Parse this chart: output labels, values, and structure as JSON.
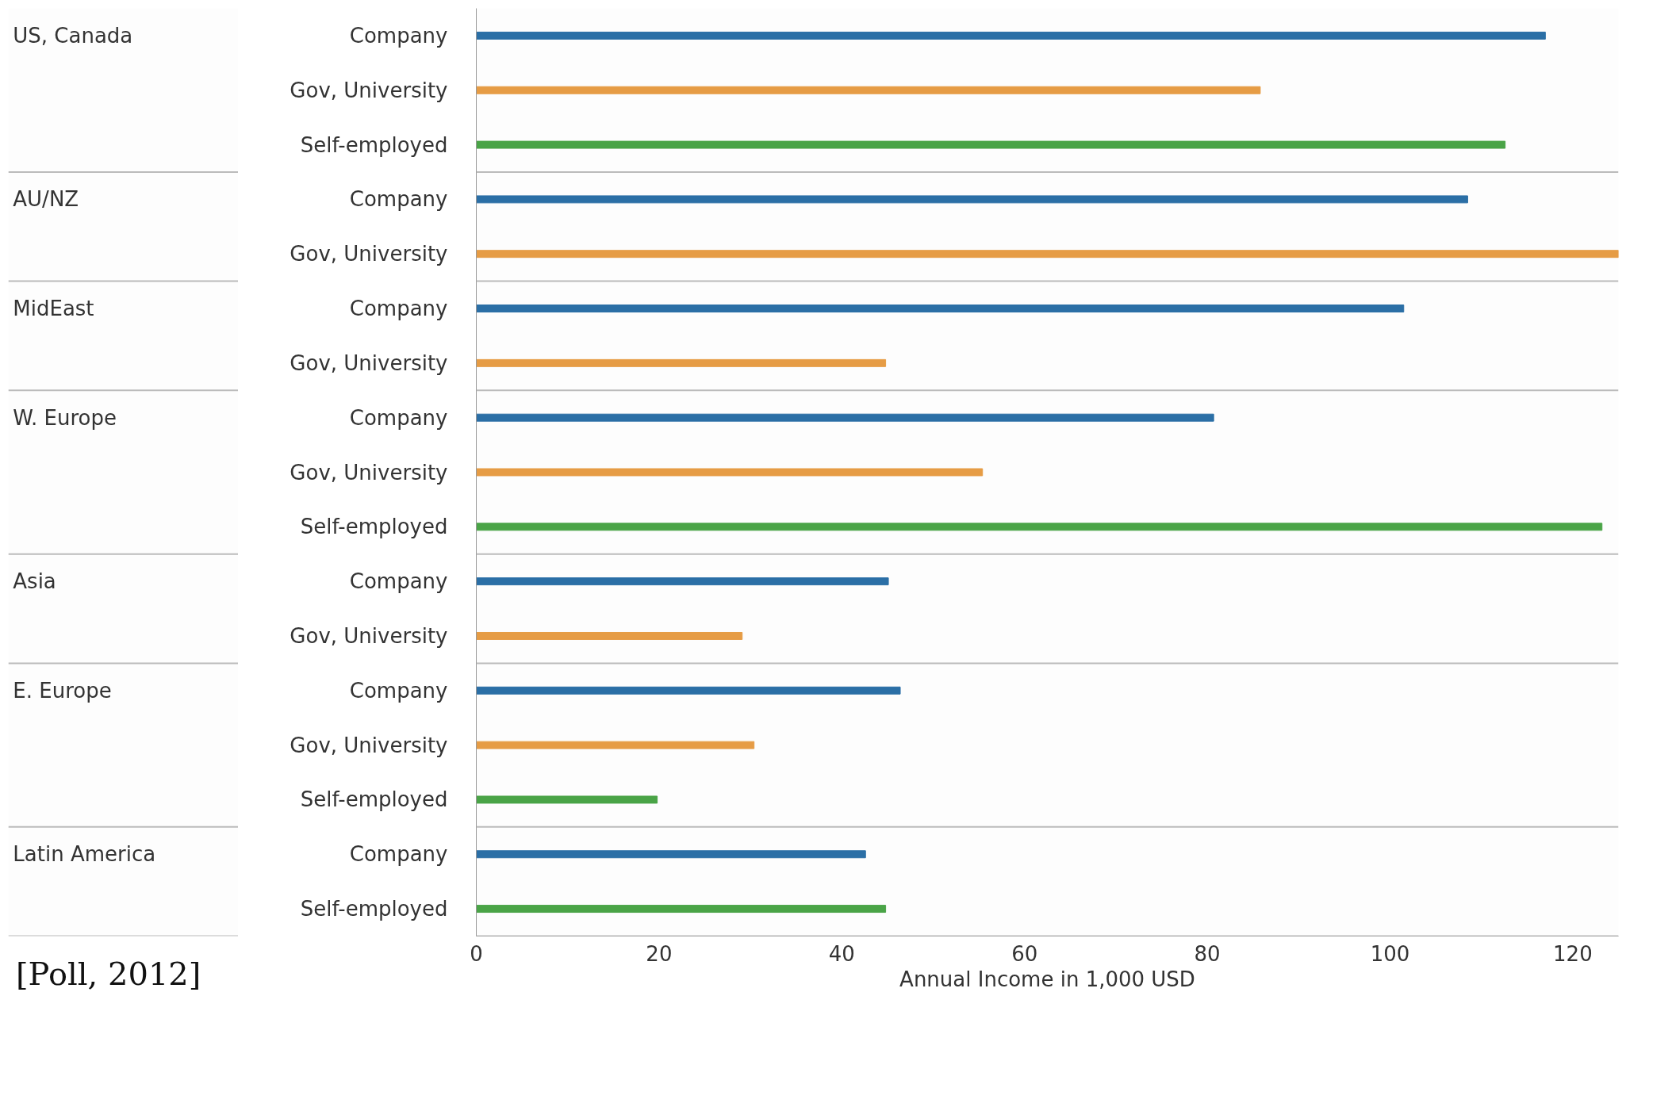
{
  "chart_data": {
    "type": "bar",
    "orientation": "horizontal",
    "xlabel": "Annual Income in 1,000 USD",
    "categories": [
      "Company",
      "Gov, University",
      "Self-employed",
      "Company",
      "Gov, University",
      "Company",
      "Gov, University",
      "Company",
      "Gov, University",
      "Self-employed",
      "Company",
      "Gov, University",
      "Company",
      "Gov, University",
      "Self-employed",
      "Company",
      "Self-employed"
    ],
    "series": [
      {
        "color": "#2b6fa6",
        "values": [
          117,
          null,
          null,
          108.5,
          null,
          101.5,
          null,
          80.7,
          null,
          null,
          45.1,
          null,
          46.4,
          null,
          null,
          42.6,
          null
        ]
      },
      {
        "color": "#e69c45",
        "values": [
          null,
          85.8,
          null,
          null,
          125,
          null,
          44.8,
          null,
          55.4,
          null,
          null,
          29.1,
          null,
          30.4,
          null,
          null,
          null
        ]
      },
      {
        "color": "#4aa447",
        "values": [
          null,
          null,
          112.6,
          null,
          null,
          null,
          null,
          null,
          null,
          123.2,
          null,
          null,
          null,
          null,
          19.8,
          null,
          44.8
        ]
      }
    ],
    "xlim": [
      0,
      125
    ],
    "xticks": [
      0,
      20,
      40,
      60,
      80,
      100,
      120
    ],
    "grid": false,
    "annotations": [
      "US, Canada",
      "AU/NZ",
      "MidEast",
      "W. Europe",
      "Asia",
      "E. Europe",
      "Latin America",
      "[Poll, 2012]"
    ]
  }
}
